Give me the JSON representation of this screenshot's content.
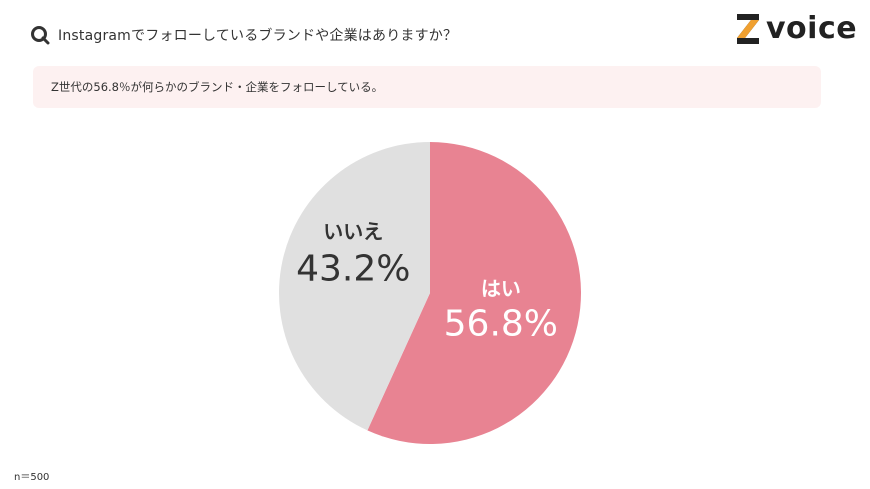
{
  "question": {
    "text": "Instagramでフォローしているブランドや企業はありますか？",
    "icon": "magnifier-q-icon"
  },
  "logo": {
    "text": "voice",
    "mark_letter": "Z",
    "mark_accent_color": "#f0a030",
    "mark_color": "#222222"
  },
  "summary": {
    "text": "Z世代の56.8％が何らかのブランド・企業をフォローしている。"
  },
  "chart_data": {
    "type": "pie",
    "start_angle_deg": 0,
    "direction": "clockwise",
    "slices": [
      {
        "label": "はい",
        "value": 56.8,
        "display": "56.8%",
        "color": "#e88392",
        "text_color": "#ffffff"
      },
      {
        "label": "いいえ",
        "value": 43.2,
        "display": "43.2%",
        "color": "#e0e0e0",
        "text_color": "#333333"
      }
    ]
  },
  "footer": {
    "sample_size": "n＝500"
  }
}
